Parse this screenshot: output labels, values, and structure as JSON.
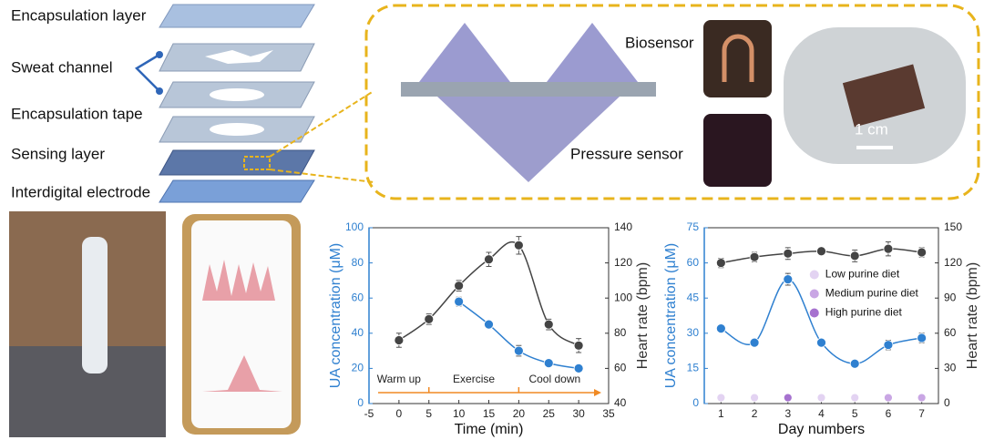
{
  "figure": {
    "layers": [
      "Encapsulation layer",
      "Sweat channel",
      "Encapsulation tape",
      "Sensing layer",
      "Interdigital electrode"
    ],
    "biosensor": "Biosensor",
    "pressure_sensor": "Pressure sensor",
    "scale_bar": "1 cm"
  },
  "chart_data": [
    {
      "type": "line",
      "x_label": "Time (min)",
      "y_label": "UA concentration (μM)",
      "y2_label": "Heart rate (bpm)",
      "xlim": [
        -5,
        35
      ],
      "xticks": [
        -5,
        0,
        5,
        10,
        15,
        20,
        25,
        30,
        35
      ],
      "ylim": [
        0,
        100
      ],
      "yticks": [
        0,
        20,
        40,
        60,
        80,
        100
      ],
      "y2lim": [
        40,
        140
      ],
      "y2ticks": [
        40,
        60,
        80,
        100,
        120,
        140
      ],
      "series": [
        {
          "color": "#2f80d0",
          "x": [
            10,
            15,
            20,
            25,
            30
          ],
          "values": [
            58,
            45,
            30,
            23,
            20
          ],
          "errors": [
            2.5,
            1.5,
            3,
            1.5,
            2
          ]
        },
        {
          "color": "#444444",
          "axis": "y2",
          "x": [
            0,
            5,
            10,
            15,
            20,
            25,
            30
          ],
          "values": [
            76,
            88,
            107,
            122,
            130,
            85,
            73
          ],
          "errors": [
            4,
            3,
            3,
            4,
            5,
            3,
            4
          ]
        }
      ],
      "phases": [
        "Warm up",
        "Exercise",
        "Cool down"
      ],
      "phase_boundaries": [
        5,
        20
      ]
    },
    {
      "type": "line",
      "x_label": "Day numbers",
      "y_label": "UA concentration (μM)",
      "y2_label": "Heart rate (bpm)",
      "xlim": [
        0.5,
        7.5
      ],
      "xticks": [
        1,
        2,
        3,
        4,
        5,
        6,
        7
      ],
      "ylim": [
        0,
        75
      ],
      "yticks": [
        0,
        15,
        30,
        45,
        60,
        75
      ],
      "y2lim": [
        0,
        150
      ],
      "y2ticks": [
        0,
        30,
        60,
        90,
        120,
        150
      ],
      "legend": "center right",
      "series": [
        {
          "color": "#2f80d0",
          "x": [
            1,
            2,
            3,
            4,
            5,
            6,
            7
          ],
          "values": [
            32,
            26,
            53,
            26,
            17,
            25,
            28
          ],
          "errors": [
            1.5,
            1.5,
            2.5,
            1.5,
            1.2,
            2,
            2
          ]
        },
        {
          "color": "#444444",
          "axis": "y2",
          "x": [
            1,
            2,
            3,
            4,
            5,
            6,
            7
          ],
          "values": [
            120,
            125,
            128,
            130,
            126,
            132,
            129
          ],
          "errors": [
            4,
            4,
            5,
            3,
            5,
            6,
            4
          ]
        },
        {
          "name": "Low purine diet",
          "color": "#e3d3f2",
          "line": false,
          "x": [
            1,
            2,
            4,
            5
          ],
          "values": [
            2.5,
            2.5,
            2.5,
            2.5
          ]
        },
        {
          "name": "Medium purine diet",
          "color": "#c9a6e4",
          "line": false,
          "x": [
            6,
            7
          ],
          "values": [
            2.5,
            2.5
          ]
        },
        {
          "name": "High purine diet",
          "color": "#a672cf",
          "line": false,
          "x": [
            3
          ],
          "values": [
            2.5
          ]
        }
      ]
    }
  ]
}
